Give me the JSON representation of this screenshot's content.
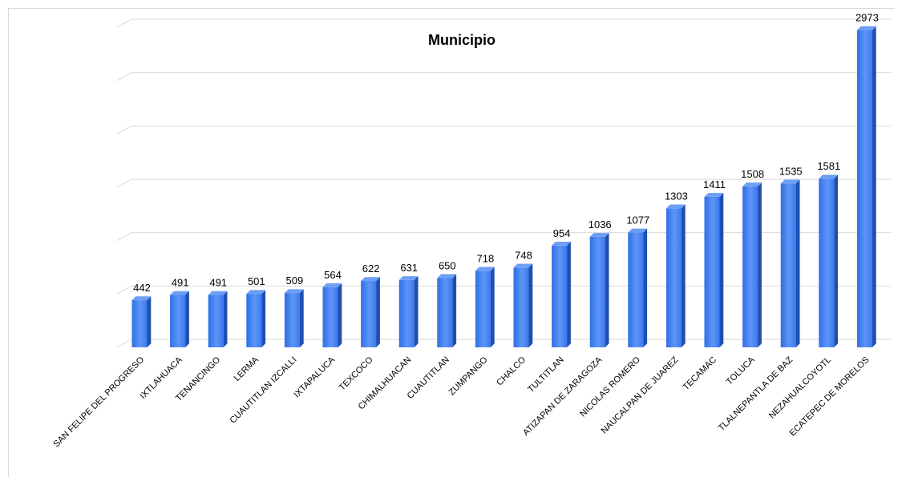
{
  "chart_data": {
    "type": "bar",
    "title": "Municipio",
    "xlabel": "",
    "ylabel": "",
    "grid": true,
    "ylim": [
      0,
      3000
    ],
    "categories": [
      "SAN FELIPE DEL PROGRESO",
      "IXTLAHUACA",
      "TENANCINGO",
      "LERMA",
      "CUAUTITLAN IZCALLI",
      "IXTAPALUCA",
      "TEXCOCO",
      "CHIMALHUACAN",
      "CUAUTITLAN",
      "ZUMPANGO",
      "CHALCO",
      "TULTITLAN",
      "ATIZAPAN DE ZARAGOZA",
      "NICOLAS ROMERO",
      "NAUCALPAN DE JUAREZ",
      "TECAMAC",
      "TOLUCA",
      "TLALNEPANTLA DE BAZ",
      "NEZAHUALCOYOTL",
      "ECATEPEC DE MORELOS"
    ],
    "values": [
      442,
      491,
      491,
      501,
      509,
      564,
      622,
      631,
      650,
      718,
      748,
      954,
      1036,
      1077,
      1303,
      1411,
      1508,
      1535,
      1581,
      2973
    ],
    "colors": {
      "bar_front": "#3d7df0",
      "bar_side": "#1f4fb0",
      "bar_top": "#6c9ff5"
    }
  }
}
